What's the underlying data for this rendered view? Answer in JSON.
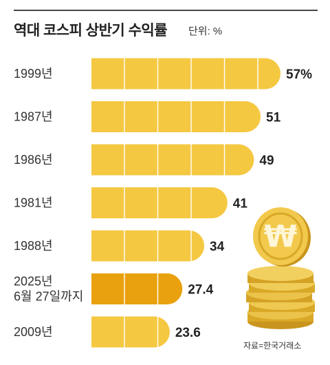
{
  "header": {
    "title": "역대 코스피 상반기 수익률",
    "unit": "단위: %"
  },
  "source": "자료=한국거래소",
  "colors": {
    "bar": "#F5C842",
    "highlight": "#E9A10F",
    "segment_line": "#FFFFFF",
    "coin": "#E9B52A"
  },
  "icons": [
    "won-coin-icon",
    "coin-stack-icon"
  ],
  "chart_data": {
    "type": "bar",
    "orientation": "horizontal",
    "title": "역대 코스피 상반기 수익률",
    "unit": "%",
    "categories": [
      "1999년",
      "1987년",
      "1986년",
      "1981년",
      "1988년",
      "2025년 6월 27일까지",
      "2009년"
    ],
    "category_lines": [
      [
        "1999년"
      ],
      [
        "1987년"
      ],
      [
        "1986년"
      ],
      [
        "1981년"
      ],
      [
        "1988년"
      ],
      [
        "2025년",
        "6월 27일까지"
      ],
      [
        "2009년"
      ]
    ],
    "values": [
      57,
      51,
      49,
      41,
      34,
      27.4,
      23.6
    ],
    "value_labels": [
      "57%",
      "51",
      "49",
      "41",
      "34",
      "27.4",
      "23.6"
    ],
    "highlight_index": 5,
    "xlim": [
      0,
      57
    ]
  }
}
